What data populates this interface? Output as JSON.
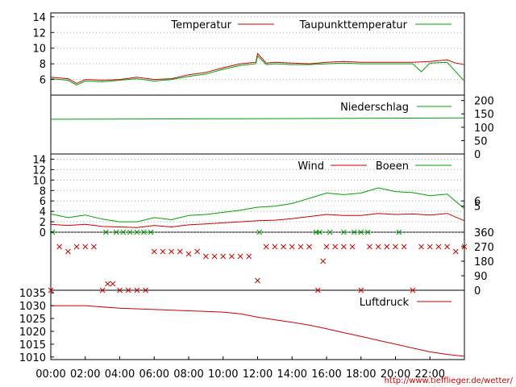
{
  "colors": {
    "red": "#cc0000",
    "green": "#00a000",
    "axis": "#000000",
    "grid": "#a0a0a0"
  },
  "footer_url": "http://www.tiefflieger.de/wetter/",
  "x_axis": {
    "min_hours": 0,
    "max_hours": 24,
    "tick_labels": [
      "00:00",
      "02:00",
      "04:00",
      "06:00",
      "08:00",
      "10:00",
      "12:00",
      "14:00",
      "16:00",
      "18:00",
      "20:00",
      "22:00"
    ]
  },
  "chart_data": [
    {
      "type": "line",
      "panel": "temperature",
      "series": [
        {
          "name": "Temperatur",
          "color": "#cc0000",
          "x": [
            0,
            1,
            1.5,
            2,
            3,
            4,
            5,
            6,
            7,
            8,
            9,
            10,
            11,
            11.9,
            12,
            12.5,
            13,
            14,
            15,
            16,
            17,
            18,
            19,
            20,
            21,
            22,
            23,
            23.5,
            24
          ],
          "y": [
            6.3,
            6.1,
            5.5,
            6.0,
            5.9,
            6.0,
            6.3,
            6.0,
            6.1,
            6.6,
            6.9,
            7.5,
            8.0,
            8.2,
            9.3,
            8.1,
            8.2,
            8.1,
            8.0,
            8.2,
            8.3,
            8.2,
            8.2,
            8.2,
            8.2,
            8.3,
            8.5,
            8.1,
            7.9
          ]
        },
        {
          "name": "Taupunkttemperatur",
          "color": "#00a000",
          "x": [
            0,
            1,
            1.5,
            2,
            3,
            4,
            5,
            6,
            7,
            8,
            9,
            10,
            11,
            11.9,
            12,
            12.5,
            13,
            14,
            15,
            16,
            17,
            18,
            19,
            20,
            21,
            21.5,
            22,
            23,
            23.5,
            24
          ],
          "y": [
            6.1,
            5.9,
            5.3,
            5.8,
            5.7,
            5.9,
            6.1,
            5.8,
            6.0,
            6.4,
            6.7,
            7.3,
            7.8,
            8.0,
            9.0,
            7.9,
            8.0,
            7.9,
            7.9,
            8.0,
            8.1,
            8.0,
            8.0,
            8.0,
            8.0,
            7.0,
            8.1,
            8.2,
            7.0,
            5.8
          ]
        }
      ],
      "ylim": [
        4,
        14.5
      ],
      "yticks": [
        6,
        8,
        10,
        12,
        14
      ],
      "tick_side": "left",
      "grid": true,
      "legend": "top-right"
    },
    {
      "type": "line",
      "panel": "precipitation",
      "series": [
        {
          "name": "Niederschlag",
          "color": "#00a000",
          "x": [
            0,
            12,
            24
          ],
          "y": [
            130,
            132,
            135
          ]
        }
      ],
      "ylim": [
        0,
        220
      ],
      "yticks": [
        0,
        50,
        100,
        150,
        200
      ],
      "tick_side": "right",
      "grid": false,
      "legend": "top-right"
    },
    {
      "type": "line",
      "panel": "wind",
      "series": [
        {
          "name": "Wind",
          "color": "#cc0000",
          "x": [
            0,
            1,
            2,
            3,
            4,
            5,
            6,
            7,
            8,
            9,
            10,
            11,
            12,
            13,
            14,
            15,
            16,
            17,
            18,
            19,
            20,
            21,
            22,
            23,
            24
          ],
          "y": [
            1.5,
            1.3,
            1.5,
            1.1,
            1.0,
            0.9,
            1.3,
            1.0,
            1.4,
            1.6,
            1.8,
            2.0,
            2.2,
            2.3,
            2.6,
            3.0,
            3.4,
            3.2,
            3.2,
            3.6,
            3.4,
            3.5,
            3.3,
            3.6,
            2.2
          ]
        },
        {
          "name": "Boeen",
          "color": "#00a000",
          "x": [
            0,
            1,
            2,
            3,
            4,
            5,
            6,
            7,
            8,
            9,
            10,
            11,
            12,
            13,
            14,
            15,
            16,
            17,
            18,
            19,
            20,
            21,
            22,
            23,
            24
          ],
          "y": [
            3.5,
            2.8,
            3.3,
            2.5,
            2.0,
            2.0,
            2.8,
            2.4,
            3.2,
            3.4,
            3.8,
            4.2,
            4.8,
            5.0,
            5.5,
            6.5,
            7.5,
            7.2,
            7.5,
            8.5,
            7.8,
            7.6,
            7.0,
            7.3,
            4.5
          ]
        }
      ],
      "ylim": [
        0,
        15
      ],
      "yticks": [
        0,
        2,
        4,
        6,
        8,
        10,
        12,
        14
      ],
      "right_ticks": [
        5,
        6
      ],
      "tick_side": "left",
      "grid": true,
      "legend": "top-right"
    },
    {
      "type": "scatter",
      "panel": "wind_direction",
      "series": [
        {
          "name": "",
          "color": "#cc0000",
          "x": [
            0,
            0.5,
            1,
            1.5,
            2,
            2.5,
            3,
            3.3,
            3.6,
            4,
            4.5,
            5,
            5.5,
            6,
            6.5,
            7,
            7.5,
            8,
            8.5,
            9,
            9.5,
            10,
            10.5,
            11,
            11.5,
            12,
            12.5,
            13,
            13.5,
            14,
            14.5,
            15,
            15.5,
            15.8,
            16,
            16.5,
            17,
            17.5,
            18,
            18.5,
            19,
            19.5,
            20,
            20.5,
            21,
            21.5,
            22,
            22.5,
            23,
            23.5,
            24
          ],
          "y": [
            0,
            270,
            240,
            270,
            270,
            270,
            0,
            40,
            40,
            0,
            0,
            0,
            0,
            240,
            240,
            240,
            240,
            225,
            240,
            210,
            210,
            210,
            210,
            210,
            210,
            60,
            270,
            270,
            270,
            270,
            270,
            270,
            0,
            180,
            270,
            270,
            270,
            270,
            0,
            270,
            270,
            270,
            270,
            270,
            0,
            270,
            270,
            270,
            270,
            240,
            270
          ]
        },
        {
          "name": "",
          "color": "#00a000",
          "x": [
            0.1,
            3.2,
            3.8,
            4.2,
            4.6,
            5,
            5.4,
            5.8,
            12.1,
            15.4,
            15.6,
            16.2,
            17,
            17.6,
            18,
            18.4,
            20.2
          ],
          "y": [
            360,
            360,
            360,
            360,
            360,
            360,
            360,
            360,
            360,
            360,
            360,
            360,
            360,
            360,
            360,
            360,
            360
          ]
        }
      ],
      "ylim": [
        0,
        360
      ],
      "right_ticks": [
        0,
        90,
        180,
        270,
        360
      ],
      "tick_side": "right",
      "grid": false,
      "legend": ""
    },
    {
      "type": "line",
      "panel": "pressure",
      "series": [
        {
          "name": "Luftdruck",
          "color": "#cc0000",
          "x": [
            0,
            2,
            4,
            6,
            8,
            10,
            11,
            12,
            13,
            14,
            15,
            16,
            17,
            18,
            19,
            20,
            21,
            22,
            23,
            24
          ],
          "y": [
            1030.0,
            1030.0,
            1029.0,
            1028.5,
            1028.0,
            1027.5,
            1026.8,
            1025.5,
            1024.5,
            1023.5,
            1022.4,
            1021.0,
            1019.5,
            1018.0,
            1016.5,
            1015.0,
            1013.5,
            1012.0,
            1011.0,
            1010.3
          ]
        }
      ],
      "ylim": [
        1009,
        1036
      ],
      "yticks": [
        1010,
        1015,
        1020,
        1025,
        1030,
        1035
      ],
      "tick_side": "left",
      "grid": false,
      "legend": "top-right"
    }
  ]
}
